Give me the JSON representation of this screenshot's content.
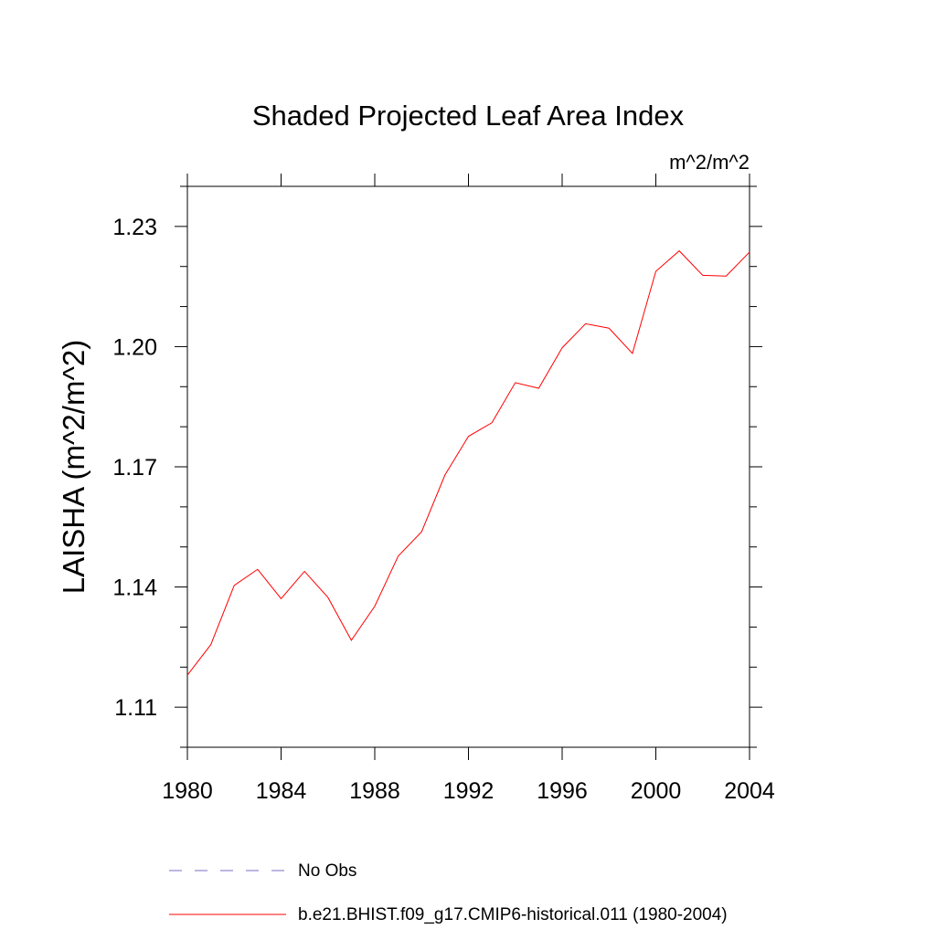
{
  "chart_data": {
    "type": "line",
    "title": "Shaded Projected Leaf Area Index",
    "units_label": "m^2/m^2",
    "xlabel": "",
    "ylabel": "LAISHA  (m^2/m^2)",
    "xlim": [
      1980,
      2004
    ],
    "ylim": [
      1.1,
      1.24
    ],
    "x_ticks": [
      1980,
      1984,
      1988,
      1992,
      1996,
      2000,
      2004
    ],
    "x_tick_labels": [
      "1980",
      "1984",
      "1988",
      "1992",
      "1996",
      "2000",
      "2004"
    ],
    "y_ticks": [
      1.11,
      1.14,
      1.17,
      1.2,
      1.23
    ],
    "y_tick_labels": [
      "1.11",
      "1.14",
      "1.17",
      "1.20",
      "1.23"
    ],
    "grid": false,
    "legend_position": "bottom",
    "series": [
      {
        "name": "b.e21.BHIST.f09_g17.CMIP6-historical.011 (1980-2004)",
        "color": "#ff0000",
        "style": "solid",
        "x": [
          1980,
          1981,
          1982,
          1983,
          1984,
          1985,
          1986,
          1987,
          1988,
          1989,
          1990,
          1991,
          1992,
          1993,
          1994,
          1995,
          1996,
          1997,
          1998,
          1999,
          2000,
          2001,
          2002,
          2003,
          2004
        ],
        "y": [
          1.118,
          1.1256,
          1.1404,
          1.1444,
          1.1371,
          1.1439,
          1.1374,
          1.1267,
          1.1352,
          1.1477,
          1.1538,
          1.168,
          1.1776,
          1.181,
          1.191,
          1.1896,
          1.1997,
          1.2057,
          1.2046,
          1.1983,
          1.2188,
          1.2239,
          1.2178,
          1.2176,
          1.2236
        ]
      }
    ],
    "legend": [
      {
        "label": "No Obs",
        "color": "#7b6fc0",
        "style": "dashed"
      },
      {
        "label": "b.e21.BHIST.f09_g17.CMIP6-historical.011 (1980-2004)",
        "color": "#ff0000",
        "style": "solid"
      }
    ]
  }
}
